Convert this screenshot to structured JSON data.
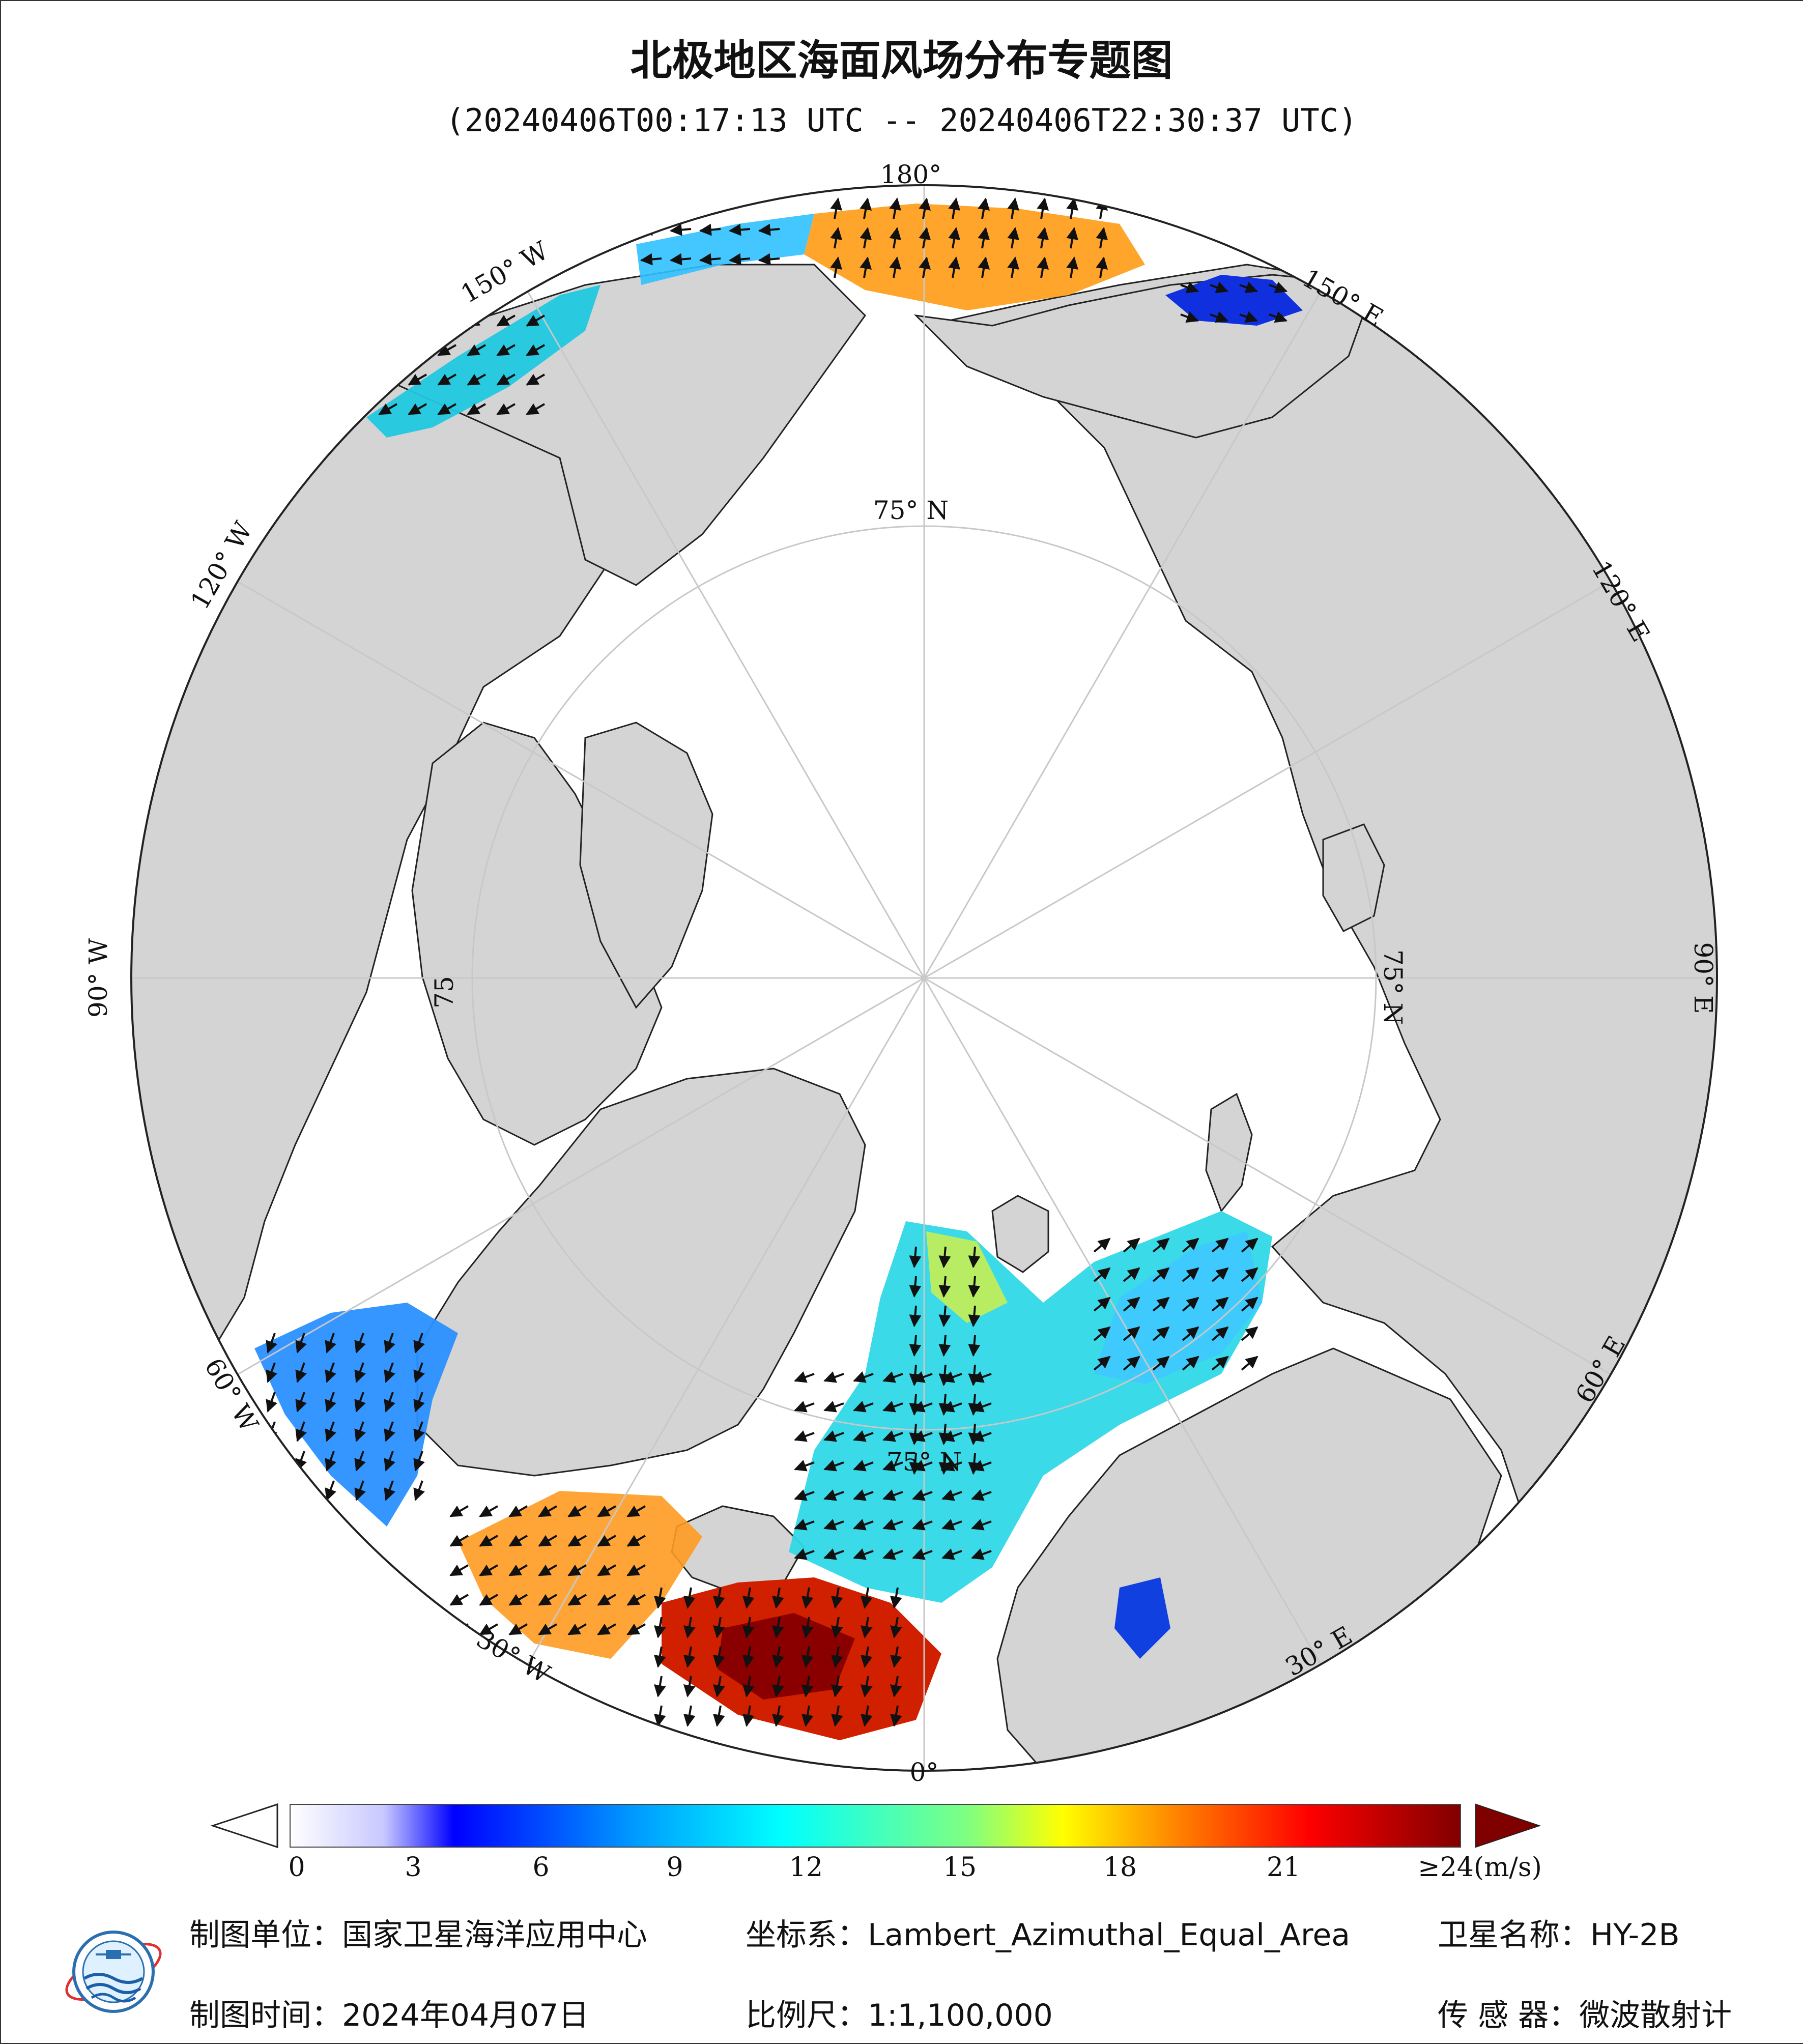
{
  "title": "北极地区海面风场分布专题图",
  "subtitle": "(20240406T00:17:13 UTC -- 20240406T22:30:37 UTC)",
  "map": {
    "projection_labels": {
      "lon_180": "180°",
      "lon_150w": "150° W",
      "lon_120w": "120° W",
      "lon_90w": "90° W",
      "lon_60w": "60° W",
      "lon_30w": "30° W",
      "lon_0": "0°",
      "lon_30e": "30° E",
      "lon_60e": "60° E",
      "lon_90e": "90° E",
      "lon_120e": "120° E",
      "lon_150e": "150° E",
      "lat_75n_top": "75° N",
      "lat_75n_right": "75° N",
      "lat_75n_left": "75",
      "lat_75n_bottom": "75° N"
    },
    "colors": {
      "land": "#d4d4d4",
      "sea_ice": "#ffffff",
      "graticule": "#c8c8c8",
      "arrow": "#111111"
    }
  },
  "colorbar": {
    "unit_label": "≥24(m/s)",
    "ticks": [
      "0",
      "3",
      "6",
      "9",
      "12",
      "15",
      "18",
      "21"
    ],
    "range": [
      0,
      24
    ],
    "colors": [
      "#ffffff",
      "#c8c8ff",
      "#0000ff",
      "#00a0ff",
      "#00ffff",
      "#80ff80",
      "#ffff00",
      "#ff8000",
      "#ff0000",
      "#800000"
    ]
  },
  "footer": {
    "unit_label": "制图单位：国家卫星海洋应用中心",
    "time_label": "制图时间：2024年04月07日",
    "crs_label": "坐标系：Lambert_Azimuthal_Equal_Area",
    "scale_label": "比例尺：1:1,100,000",
    "satellite_label": "卫星名称：HY-2B",
    "sensor_label": "传 感 器：微波散射计"
  }
}
